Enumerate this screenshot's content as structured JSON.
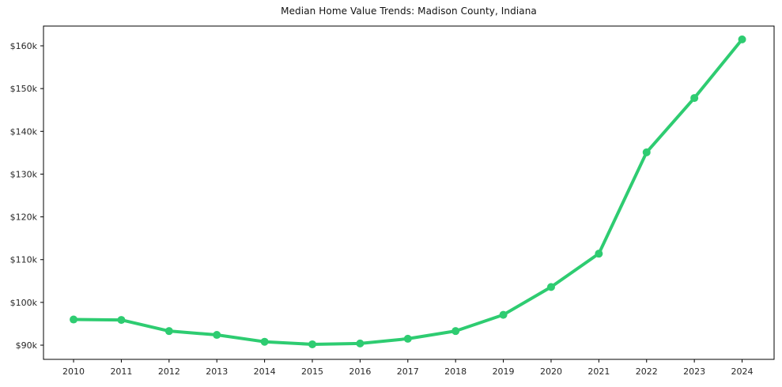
{
  "page": {
    "background": "#ffffff"
  },
  "chart_data": {
    "type": "line",
    "title": "Median Home Value Trends: Madison County, Indiana",
    "xlabel": "",
    "ylabel": "",
    "x": [
      2010,
      2011,
      2012,
      2013,
      2014,
      2015,
      2016,
      2017,
      2018,
      2019,
      2020,
      2021,
      2022,
      2023,
      2024
    ],
    "x_tick_labels": [
      "2010",
      "2011",
      "2012",
      "2013",
      "2014",
      "2015",
      "2016",
      "2017",
      "2018",
      "2019",
      "2020",
      "2021",
      "2022",
      "2023",
      "2024"
    ],
    "series": [
      {
        "name": "Median Home Value",
        "color": "#2ecc71",
        "values": [
          96000,
          95900,
          93300,
          92400,
          90800,
          90200,
          90400,
          91500,
          93300,
          97100,
          103600,
          111400,
          135100,
          147800,
          161500
        ]
      }
    ],
    "y_ticks": [
      {
        "value": 90000,
        "label": "$90k"
      },
      {
        "value": 100000,
        "label": "$100k"
      },
      {
        "value": 110000,
        "label": "$110k"
      },
      {
        "value": 120000,
        "label": "$120k"
      },
      {
        "value": 130000,
        "label": "$130k"
      },
      {
        "value": 140000,
        "label": "$140k"
      },
      {
        "value": 150000,
        "label": "$150k"
      },
      {
        "value": 160000,
        "label": "$160k"
      }
    ],
    "xlim": [
      2009.37,
      2024.67
    ],
    "ylim": [
      86680,
      164620
    ],
    "grid": false,
    "legend": false,
    "line_width": 4,
    "marker_radius": 5,
    "colors": {
      "accent": "#2ecc71",
      "axis": "#000000",
      "tick_text": "#262626",
      "background": "#ffffff"
    }
  }
}
